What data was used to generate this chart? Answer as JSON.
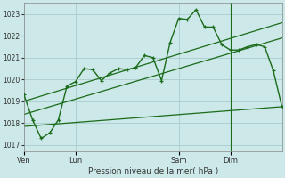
{
  "xlabel": "Pression niveau de la mer( hPa )",
  "bg_color": "#cce8e8",
  "grid_color": "#aacccc",
  "line_color": "#1a6b1a",
  "ylim": [
    1016.7,
    1023.5
  ],
  "yticks": [
    1017,
    1018,
    1019,
    1020,
    1021,
    1022,
    1023
  ],
  "day_labels": [
    "Ven",
    "Lun",
    "Sam",
    "Dim"
  ],
  "day_positions": [
    0,
    12,
    36,
    48
  ],
  "vline_x": 48,
  "xmin": 0,
  "xmax": 60,
  "series1_x": [
    0,
    2,
    4,
    6,
    8,
    10,
    12,
    14,
    16,
    18,
    20,
    22,
    24,
    26,
    28,
    30,
    32,
    34,
    36,
    38,
    40,
    42,
    44,
    46,
    48,
    50,
    52,
    54,
    56,
    58,
    60
  ],
  "series1_y": [
    1019.3,
    1018.15,
    1017.3,
    1017.55,
    1018.15,
    1019.7,
    1019.9,
    1020.5,
    1020.45,
    1019.95,
    1020.3,
    1020.5,
    1020.45,
    1020.55,
    1021.1,
    1021.0,
    1019.95,
    1021.7,
    1022.8,
    1022.75,
    1023.2,
    1022.4,
    1022.4,
    1021.6,
    1021.35,
    1021.35,
    1021.5,
    1021.6,
    1021.5,
    1020.4,
    1018.75
  ],
  "series2_x": [
    0,
    60
  ],
  "series2_y": [
    1017.85,
    1018.75
  ],
  "series3_x": [
    0,
    60
  ],
  "series3_y": [
    1018.4,
    1021.9
  ],
  "series4_x": [
    0,
    60
  ],
  "series4_y": [
    1019.0,
    1022.6
  ]
}
